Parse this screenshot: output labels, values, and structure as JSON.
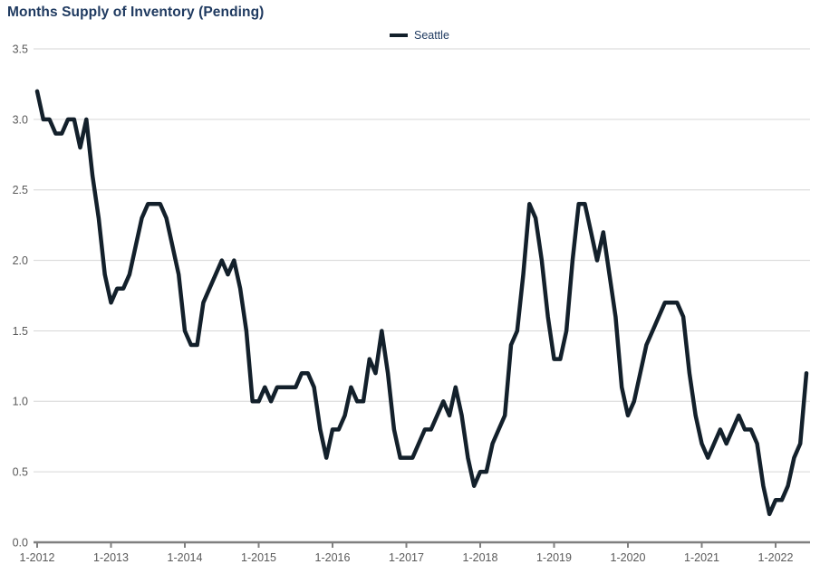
{
  "title": "Months Supply of Inventory (Pending)",
  "legend": {
    "seattle_label": "Seattle"
  },
  "colors": {
    "line": "#13202b",
    "title_text": "#1f3a60",
    "axis_text": "#595959",
    "gridline": "#d6d6d6",
    "axis_line": "#7f7f7f",
    "background": "#ffffff"
  },
  "chart_data": {
    "type": "line",
    "title": "Months Supply of Inventory (Pending)",
    "x_unit": "month",
    "x_start_label": "1-2012",
    "x_tick_labels": [
      "1-2012",
      "1-2013",
      "1-2014",
      "1-2015",
      "1-2016",
      "1-2017",
      "1-2018",
      "1-2019",
      "1-2020",
      "1-2021",
      "1-2022"
    ],
    "y_tick_labels": [
      "0.0",
      "0.5",
      "1.0",
      "1.5",
      "2.0",
      "2.5",
      "3.0",
      "3.5"
    ],
    "y_ticks": [
      0.0,
      0.5,
      1.0,
      1.5,
      2.0,
      2.5,
      3.0,
      3.5
    ],
    "ylim": [
      0,
      3.5
    ],
    "grid": "horizontal",
    "legend_position": "top-center",
    "series": [
      {
        "name": "Seattle",
        "color": "#13202b",
        "start": "1-2012",
        "values": [
          3.2,
          3.0,
          3.0,
          2.9,
          2.9,
          3.0,
          3.0,
          2.8,
          3.0,
          2.6,
          2.3,
          1.9,
          1.7,
          1.8,
          1.8,
          1.9,
          2.1,
          2.3,
          2.4,
          2.4,
          2.4,
          2.3,
          2.1,
          1.9,
          1.5,
          1.4,
          1.4,
          1.7,
          1.8,
          1.9,
          2.0,
          1.9,
          2.0,
          1.8,
          1.5,
          1.0,
          1.0,
          1.1,
          1.0,
          1.1,
          1.1,
          1.1,
          1.1,
          1.2,
          1.2,
          1.1,
          0.8,
          0.6,
          0.8,
          0.8,
          0.9,
          1.1,
          1.0,
          1.0,
          1.3,
          1.2,
          1.5,
          1.2,
          0.8,
          0.6,
          0.6,
          0.6,
          0.7,
          0.8,
          0.8,
          0.9,
          1.0,
          0.9,
          1.1,
          0.9,
          0.6,
          0.4,
          0.5,
          0.5,
          0.7,
          0.8,
          0.9,
          1.4,
          1.5,
          1.9,
          2.4,
          2.3,
          2.0,
          1.6,
          1.3,
          1.3,
          1.5,
          2.0,
          2.4,
          2.4,
          2.2,
          2.0,
          2.2,
          1.9,
          1.6,
          1.1,
          0.9,
          1.0,
          1.2,
          1.4,
          1.5,
          1.6,
          1.7,
          1.7,
          1.7,
          1.6,
          1.2,
          0.9,
          0.7,
          0.6,
          0.7,
          0.8,
          0.7,
          0.8,
          0.9,
          0.8,
          0.8,
          0.7,
          0.4,
          0.2,
          0.3,
          0.3,
          0.4,
          0.6,
          0.7,
          1.2
        ]
      }
    ]
  }
}
